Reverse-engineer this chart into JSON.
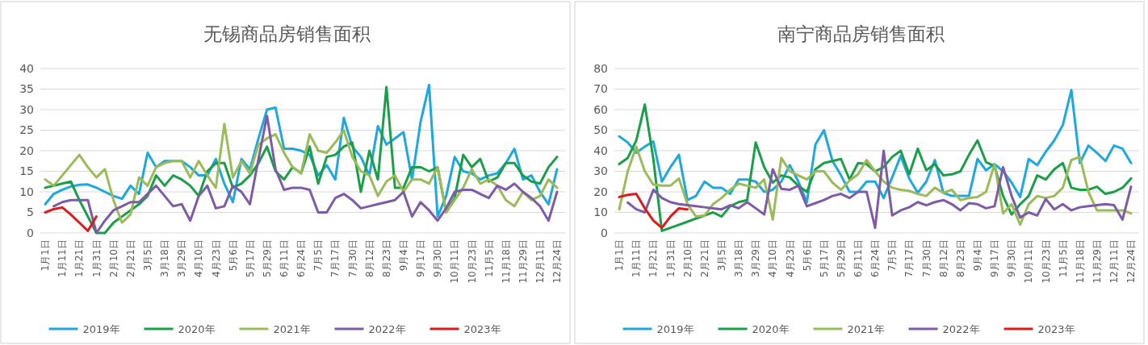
{
  "chart_data": [
    {
      "type": "line",
      "title": "无锡商品房销售面积",
      "categories": [
        "1月1日",
        null,
        "1月11日",
        null,
        "1月21日",
        null,
        "1月31日",
        null,
        "2月10日",
        null,
        "2月21日",
        null,
        "3月5日",
        null,
        "3月18日",
        null,
        "3月29日",
        null,
        "4月10日",
        null,
        "4月23日",
        null,
        "5月6日",
        null,
        "5月17日",
        null,
        "5月29日",
        null,
        "6月11日",
        null,
        "6月24日",
        null,
        "7月5日",
        null,
        "7月17日",
        null,
        "7月30日",
        null,
        "8月12日",
        null,
        "8月23日",
        null,
        "9月4日",
        null,
        "9月17日",
        null,
        "9月30日",
        null,
        "10月11日",
        null,
        "10月23日",
        null,
        "11月5日",
        null,
        "11月18日",
        null,
        "11月29日",
        null,
        "12月11日",
        null,
        "12月24日"
      ],
      "series": [
        {
          "name": "2019年",
          "color": "#1ea8df",
          "values": [
            7,
            9.5,
            10.5,
            11.3,
            11.7,
            11.8,
            11,
            10,
            9,
            8.3,
            11.5,
            9.5,
            19.5,
            16,
            17.5,
            17.5,
            17.5,
            16,
            14,
            14,
            18,
            12,
            7.5,
            18,
            15.5,
            23,
            30,
            30.5,
            20.5,
            20.5,
            20,
            19,
            14,
            16.5,
            13,
            28,
            21,
            18.5,
            14,
            26,
            21.5,
            23,
            24.5,
            13,
            27,
            36,
            4,
            9,
            18.5,
            15,
            14.5,
            13,
            14,
            14.5,
            17,
            20.5,
            13,
            14,
            10,
            7,
            15.5
          ]
        },
        {
          "name": "2020年",
          "color": "#1a9e48",
          "values": [
            11,
            11.5,
            12,
            12.5,
            8,
            4,
            0,
            0,
            2.5,
            4,
            5.5,
            7,
            9,
            14,
            11.5,
            14,
            13,
            11.5,
            9,
            15,
            17,
            17,
            11,
            12,
            14,
            17,
            21,
            15,
            13,
            16,
            14.5,
            21,
            12,
            18.5,
            19,
            21,
            22,
            10,
            20,
            13,
            35.5,
            11,
            11,
            16,
            16,
            15,
            16,
            5,
            8.5,
            19,
            16,
            18,
            12.5,
            13.5,
            17,
            17,
            14,
            12.5,
            12,
            16,
            18.5
          ]
        },
        {
          "name": "2021年",
          "color": "#9bbb59",
          "values": [
            13,
            11.5,
            14,
            16.5,
            19,
            16,
            13.5,
            15.5,
            8,
            2.5,
            4.5,
            13.5,
            11.5,
            16,
            17,
            17.5,
            17.5,
            13.5,
            17.5,
            14,
            11,
            26.5,
            13.5,
            17.5,
            14.5,
            21.5,
            23,
            24,
            19.5,
            16,
            14.5,
            24,
            20,
            19.5,
            22,
            25,
            18.5,
            15,
            14,
            9,
            12.5,
            14,
            10,
            13,
            13,
            12,
            16,
            5,
            8,
            11,
            15.5,
            12,
            13,
            11.5,
            8,
            6.5,
            10,
            8,
            9,
            13,
            11
          ]
        },
        {
          "name": "2022年",
          "color": "#7e5ba6",
          "values": [
            null,
            6.5,
            7.5,
            8,
            8,
            8,
            0,
            3,
            5.5,
            6.5,
            7.5,
            7.5,
            9.5,
            11.5,
            9,
            6.5,
            7,
            3,
            9,
            11.5,
            6,
            6.5,
            11.5,
            10,
            7,
            18,
            28.5,
            15.5,
            10.5,
            11,
            11,
            10.5,
            5,
            5,
            8.5,
            9.5,
            8,
            6,
            6.5,
            7,
            7.5,
            8,
            10,
            4,
            7.5,
            5.5,
            3,
            6,
            10,
            10.5,
            10.5,
            9.5,
            8.5,
            11.5,
            10.5,
            12,
            10,
            8.5,
            6.5,
            3,
            10
          ]
        },
        {
          "name": "2023年",
          "color": "#e01a1a",
          "values": [
            5,
            5.8,
            6.2,
            4.5,
            2.5,
            0.5,
            4,
            null,
            null,
            null,
            null,
            null,
            null,
            null,
            null,
            null,
            null,
            null,
            null,
            null,
            null,
            null,
            null,
            null,
            null,
            null,
            null,
            null,
            null,
            null,
            null,
            null,
            null,
            null,
            null,
            null,
            null,
            null,
            null,
            null,
            null,
            null,
            null,
            null,
            null,
            null,
            null,
            null,
            null,
            null,
            null,
            null,
            null,
            null,
            null,
            null,
            null,
            null,
            null,
            null,
            null
          ]
        }
      ],
      "ylim": [
        0,
        40
      ],
      "yticks": [
        0,
        5,
        10,
        15,
        20,
        25,
        30,
        35,
        40
      ],
      "grid": "y",
      "legend": "bottom"
    },
    {
      "type": "line",
      "title": "南宁商品房销售面积",
      "categories": [
        "1月1日",
        null,
        "1月11日",
        null,
        "1月21日",
        null,
        "1月31日",
        null,
        "2月10日",
        null,
        "2月21日",
        null,
        "3月5日",
        null,
        "3月18日",
        null,
        "3月29日",
        null,
        "4月10日",
        null,
        "4月23日",
        null,
        "5月6日",
        null,
        "5月17日",
        null,
        "5月29日",
        null,
        "6月11日",
        null,
        "6月24日",
        null,
        "7月5日",
        null,
        "7月17日",
        null,
        "7月30日",
        null,
        "8月12日",
        null,
        "8月23日",
        null,
        "9月4日",
        null,
        "9月17日",
        null,
        "9月30日",
        null,
        "10月11日",
        null,
        "10月23日",
        null,
        "11月5日",
        null,
        "11月18日",
        null,
        "11月29日",
        null,
        "12月11日",
        null,
        "12月24日"
      ],
      "series": [
        {
          "name": "2019年",
          "color": "#1ea8df",
          "values": [
            47,
            44,
            39,
            42,
            44.5,
            25,
            32,
            38,
            16,
            18,
            25,
            22,
            22,
            19,
            26,
            26,
            25,
            20,
            21,
            25,
            33,
            25,
            15,
            43,
            50,
            35,
            28,
            20,
            20,
            25,
            25,
            17,
            27,
            37.5,
            26.5,
            19.5,
            25,
            35.5,
            19.5,
            18,
            18,
            18,
            36,
            30.5,
            33.5,
            30,
            24.5,
            17.5,
            36,
            33,
            39.5,
            45,
            52.5,
            69.5,
            34,
            42.5,
            39,
            35,
            42.5,
            41,
            34
          ]
        },
        {
          "name": "2020年",
          "color": "#1a9e48",
          "values": [
            33.5,
            36.5,
            45,
            62.5,
            36,
            1,
            2.5,
            4,
            5.5,
            7,
            8.5,
            10,
            8,
            13,
            15,
            16,
            44,
            32,
            24.5,
            28,
            27,
            23,
            20,
            31,
            34,
            35,
            36,
            26,
            34,
            33.5,
            30,
            32,
            37,
            40,
            28.5,
            41,
            30.5,
            33.5,
            28,
            28.5,
            30,
            38,
            45,
            34.5,
            32.5,
            18,
            9,
            14,
            18,
            28,
            26,
            31,
            34,
            22,
            21,
            21,
            22.5,
            19,
            20,
            22,
            26.5
          ]
        },
        {
          "name": "2021年",
          "color": "#9bbb59",
          "values": [
            11.5,
            30,
            42,
            30,
            23.5,
            23,
            23,
            26.5,
            14,
            8,
            8.5,
            14,
            17,
            21,
            24,
            23,
            22,
            26,
            6.5,
            36.5,
            30,
            28,
            26,
            30,
            30,
            24.5,
            21,
            25.5,
            28.5,
            35.5,
            30,
            25,
            22,
            21,
            20.5,
            19,
            18,
            22,
            19.5,
            21,
            16,
            17,
            17.5,
            20,
            33.5,
            9.5,
            14,
            4,
            14,
            18,
            17,
            18,
            22,
            35.5,
            37,
            20,
            11,
            11,
            11,
            11,
            9.5
          ]
        },
        {
          "name": "2022年",
          "color": "#7e5ba6",
          "values": [
            null,
            14.8,
            11.5,
            10,
            21,
            17,
            15,
            14,
            13.5,
            13,
            12.5,
            12,
            11.5,
            13.5,
            12,
            15,
            12,
            9,
            31,
            21.5,
            21,
            23,
            13,
            14.5,
            16,
            18,
            19,
            17,
            20,
            20,
            2.5,
            40,
            8.5,
            11,
            12.5,
            15,
            13.5,
            15,
            16,
            14,
            11,
            14.5,
            14,
            12,
            13,
            32,
            18,
            7.5,
            10,
            8.5,
            16.5,
            11.5,
            14,
            11,
            12.5,
            13,
            13.5,
            14,
            13.5,
            6.5,
            22.5
          ]
        },
        {
          "name": "2023年",
          "color": "#e01a1a",
          "values": [
            17.5,
            18.5,
            19,
            12,
            6,
            2.5,
            8,
            12,
            11.5,
            null,
            null,
            null,
            null,
            null,
            null,
            null,
            null,
            null,
            null,
            null,
            null,
            null,
            null,
            null,
            null,
            null,
            null,
            null,
            null,
            null,
            null,
            null,
            null,
            null,
            null,
            null,
            null,
            null,
            null,
            null,
            null,
            null,
            null,
            null,
            null,
            null,
            null,
            null,
            null,
            null,
            null,
            null,
            null,
            null,
            null,
            null,
            null,
            null,
            null,
            null,
            null
          ]
        }
      ],
      "ylim": [
        0,
        80
      ],
      "yticks": [
        0,
        10,
        20,
        30,
        40,
        50,
        60,
        70,
        80
      ],
      "grid": "y",
      "legend": "bottom"
    }
  ]
}
